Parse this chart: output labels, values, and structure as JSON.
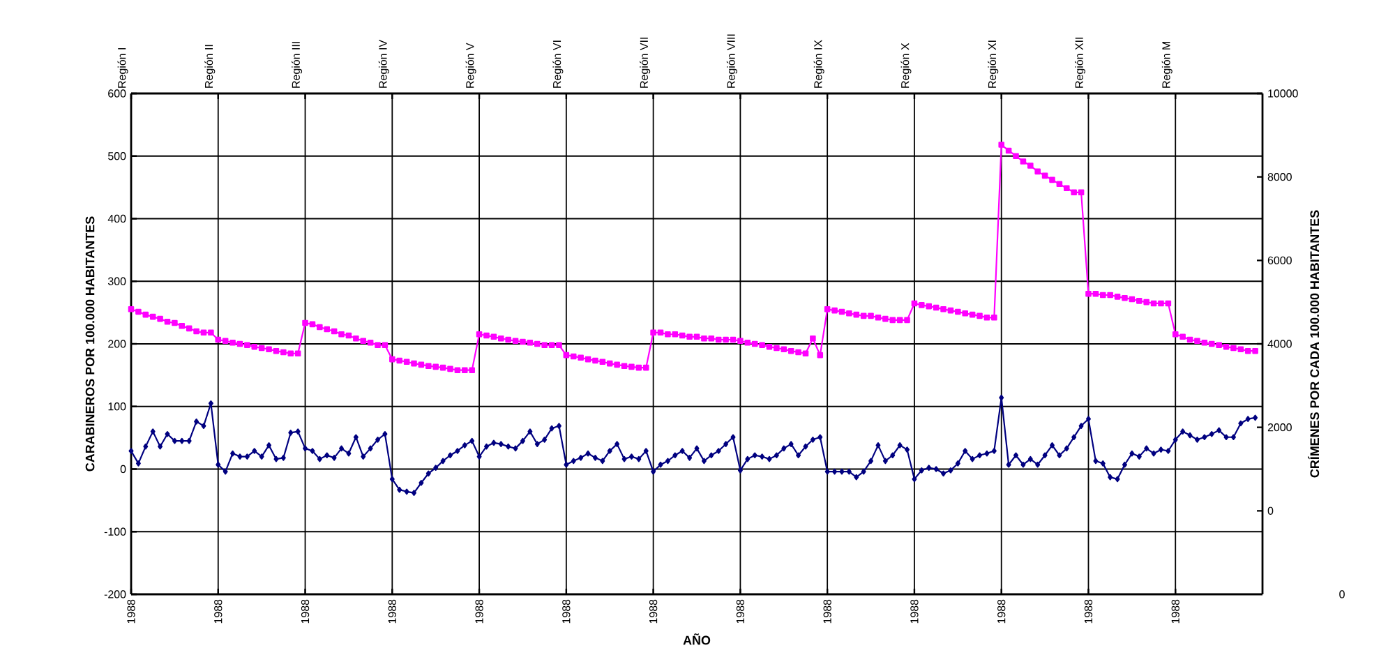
{
  "chart_data": {
    "type": "line",
    "xlabel": "AÑO",
    "ylabel": "CARABINEROS POR 100.000 HABITANTES",
    "y2label": "CRÍMENES POR CADA 100.000 HABITANTES",
    "categories": [
      "1988",
      null,
      null,
      null,
      null,
      null,
      null,
      null,
      null,
      null,
      null,
      null,
      "1988",
      null,
      null,
      null,
      null,
      null,
      null,
      null,
      null,
      null,
      null,
      null,
      "1988",
      null,
      null,
      null,
      null,
      null,
      null,
      null,
      null,
      null,
      null,
      null,
      "1988",
      null,
      null,
      null,
      null,
      null,
      null,
      null,
      null,
      null,
      null,
      null,
      "1988",
      null,
      null,
      null,
      null,
      null,
      null,
      null,
      null,
      null,
      null,
      null,
      "1988",
      null,
      null,
      null,
      null,
      null,
      null,
      null,
      null,
      null,
      null,
      null,
      "1988",
      null,
      null,
      null,
      null,
      null,
      null,
      null,
      null,
      null,
      null,
      null,
      "1988",
      null,
      null,
      null,
      null,
      null,
      null,
      null,
      null,
      null,
      null,
      null,
      "1988",
      null,
      null,
      null,
      null,
      null,
      null,
      null,
      null,
      null,
      null,
      null,
      "1988",
      null,
      null,
      null,
      null,
      null,
      null,
      null,
      null,
      null,
      null,
      null,
      "1988",
      null,
      null,
      null,
      null,
      null,
      null,
      null,
      null,
      null,
      null,
      null,
      "1988",
      null,
      null,
      null,
      null,
      null,
      null,
      null,
      null,
      null,
      null,
      null,
      "1988",
      null,
      null,
      null,
      null,
      null,
      null,
      null,
      null,
      null,
      null,
      null
    ],
    "ylim": [
      -200,
      600
    ],
    "yticks": [
      -200,
      -100,
      0,
      100,
      200,
      300,
      400,
      500,
      600
    ],
    "y2lim": [
      -2000,
      10000
    ],
    "y2ticks": [
      0,
      2000,
      4000,
      6000,
      8000,
      10000
    ],
    "grid": true,
    "annotations": [
      "Región I",
      "Región II",
      "Región III",
      "Región IV",
      "Región V",
      "Región VI",
      "Región VII",
      "Región VIII",
      "Región IX",
      "Región X",
      "Región XI",
      "Región XII",
      "Región M",
      "0"
    ],
    "series": [
      {
        "color": "#000080",
        "marker": "diamond",
        "values": [
          29,
          9,
          36,
          60,
          36,
          56,
          45,
          45,
          45,
          76,
          69,
          105,
          7,
          -4,
          25,
          20,
          20,
          29,
          20,
          38,
          16,
          18,
          58,
          60,
          33,
          29,
          16,
          22,
          18,
          33,
          25,
          51,
          20,
          33,
          47,
          56,
          -16,
          -33,
          -36,
          -38,
          -22,
          -7,
          2,
          13,
          22,
          29,
          38,
          45,
          20,
          36,
          42,
          40,
          36,
          33,
          45,
          60,
          40,
          47,
          65,
          69,
          7,
          13,
          18,
          25,
          18,
          13,
          29,
          40,
          16,
          20,
          16,
          29,
          -4,
          7,
          13,
          22,
          29,
          18,
          33,
          13,
          22,
          29,
          40,
          51,
          -2,
          16,
          22,
          20,
          16,
          22,
          33,
          40,
          22,
          36,
          47,
          51,
          -4,
          -4,
          -4,
          -4,
          -13,
          -4,
          13,
          38,
          13,
          22,
          38,
          31,
          -16,
          -2,
          2,
          0,
          -7,
          -2,
          9,
          29,
          16,
          22,
          25,
          29,
          114,
          7,
          22,
          7,
          16,
          7,
          22,
          38,
          22,
          33,
          51,
          69,
          80,
          13,
          9,
          -13,
          -16,
          7,
          25,
          20,
          33,
          25,
          31,
          29,
          47,
          60,
          54,
          47,
          51,
          56,
          62,
          51,
          51,
          73,
          80,
          82
        ]
      },
      {
        "color": "#ff00ff",
        "marker": "square",
        "axis": "y2",
        "values": [
          4830,
          4770,
          4700,
          4650,
          4600,
          4530,
          4500,
          4430,
          4370,
          4300,
          4270,
          4270,
          4100,
          4070,
          4030,
          4000,
          3970,
          3930,
          3900,
          3870,
          3830,
          3800,
          3770,
          3770,
          4500,
          4470,
          4400,
          4350,
          4300,
          4230,
          4200,
          4130,
          4070,
          4030,
          3970,
          3970,
          3630,
          3600,
          3570,
          3530,
          3500,
          3470,
          3450,
          3430,
          3400,
          3370,
          3370,
          3370,
          4230,
          4200,
          4170,
          4130,
          4100,
          4070,
          4050,
          4030,
          4000,
          3970,
          3970,
          3970,
          3730,
          3700,
          3670,
          3630,
          3600,
          3570,
          3530,
          3500,
          3470,
          3450,
          3430,
          3430,
          4270,
          4270,
          4230,
          4230,
          4200,
          4170,
          4170,
          4130,
          4130,
          4100,
          4100,
          4100,
          4070,
          4030,
          4000,
          3970,
          3930,
          3900,
          3870,
          3830,
          3800,
          3770,
          4130,
          3730,
          4830,
          4800,
          4770,
          4730,
          4700,
          4670,
          4670,
          4630,
          4600,
          4570,
          4570,
          4570,
          4970,
          4930,
          4900,
          4870,
          4830,
          4800,
          4770,
          4730,
          4700,
          4670,
          4630,
          4630,
          8770,
          8630,
          8500,
          8370,
          8270,
          8130,
          8030,
          7930,
          7830,
          7730,
          7630,
          7630,
          5200,
          5200,
          5170,
          5170,
          5130,
          5100,
          5070,
          5030,
          5000,
          4970,
          4970,
          4970,
          4230,
          4170,
          4100,
          4070,
          4030,
          4000,
          3970,
          3930,
          3900,
          3870,
          3830,
          3830
        ]
      }
    ]
  }
}
